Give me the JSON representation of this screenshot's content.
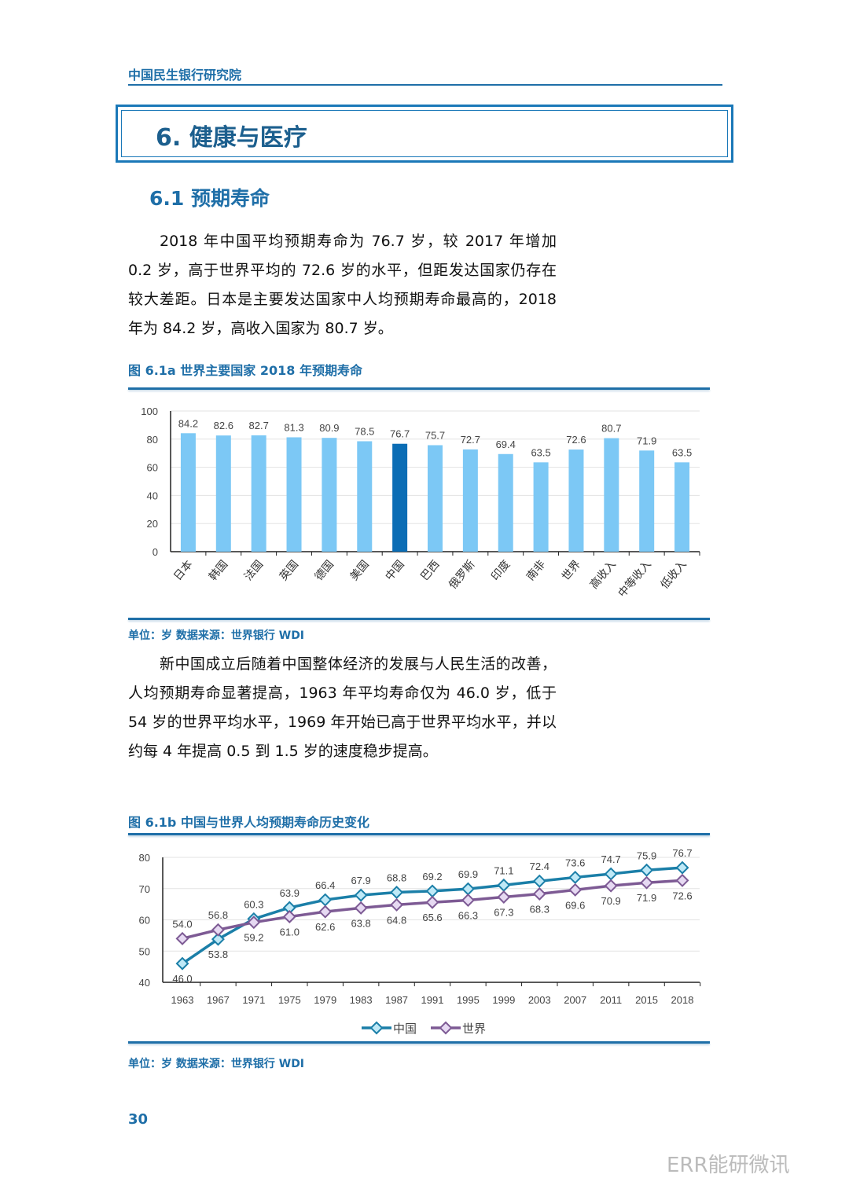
{
  "header": {
    "org": "中国民生银行研究院"
  },
  "section": {
    "title": "6. 健康与医疗"
  },
  "subsection": {
    "title": "6.1  预期寿命"
  },
  "paragraphs": [
    "2018 年中国平均预期寿命为 76.7 岁，较 2017 年增加 0.2 岁，高于世界平均的 72.6 岁的水平，但距发达国家仍存在较大差距。日本是主要发达国家中人均预期寿命最高的，2018 年为 84.2 岁，高收入国家为 80.7 岁。",
    "新中国成立后随着中国整体经济的发展与人民生活的改善，人均预期寿命显著提高，1963 年平均寿命仅为 46.0 岁，低于 54 岁的世界平均水平，1969 年开始已高于世界平均水平，并以约每 4 年提高 0.5 到 1.5 岁的速度稳步提高。"
  ],
  "figures": [
    {
      "title": "图 6.1a  世界主要国家 2018 年预期寿命",
      "source": "单位：岁    数据来源：世界银行 WDI"
    },
    {
      "title": "图 6.1b  中国与世界人均预期寿命历史变化",
      "source": "单位：岁    数据来源：世界银行 WDI"
    }
  ],
  "chart_data": [
    {
      "type": "bar",
      "categories": [
        "日本",
        "韩国",
        "法国",
        "英国",
        "德国",
        "美国",
        "中国",
        "巴西",
        "俄罗斯",
        "印度",
        "南非",
        "世界",
        "高收入",
        "中等收入",
        "低收入"
      ],
      "values": [
        84.2,
        82.6,
        82.7,
        81.3,
        80.9,
        78.5,
        76.7,
        75.7,
        72.7,
        69.4,
        63.5,
        72.6,
        80.7,
        71.9,
        63.5
      ],
      "ylim": [
        0,
        100
      ],
      "yticks": [
        0,
        20,
        40,
        60,
        80,
        100
      ],
      "highlight": "中国",
      "colors": {
        "bar": "#7cc8f5",
        "highlight": "#0b6db5"
      },
      "grid": true
    },
    {
      "type": "line",
      "x": [
        "1963",
        "1967",
        "1971",
        "1975",
        "1979",
        "1983",
        "1987",
        "1991",
        "1995",
        "1999",
        "2003",
        "2007",
        "2011",
        "2015",
        "2018"
      ],
      "series": [
        {
          "name": "中国",
          "values": [
            46.0,
            53.8,
            60.3,
            63.9,
            66.4,
            67.9,
            68.8,
            69.2,
            69.9,
            71.1,
            72.4,
            73.6,
            74.7,
            75.9,
            76.7
          ],
          "color": "#1b7fa8",
          "marker_fill": "#bfe9f7"
        },
        {
          "name": "世界",
          "values": [
            54.0,
            56.8,
            59.2,
            61.0,
            62.6,
            63.8,
            64.8,
            65.6,
            66.3,
            67.3,
            68.3,
            69.6,
            70.9,
            71.9,
            72.6
          ],
          "color": "#7d5a94",
          "marker_fill": "#e6d9f2"
        }
      ],
      "ylim": [
        40,
        80
      ],
      "yticks": [
        40,
        50,
        60,
        70,
        80
      ],
      "legend": "bottom",
      "grid": true
    }
  ],
  "page_number": "30",
  "watermark": "ERR能研微讯"
}
